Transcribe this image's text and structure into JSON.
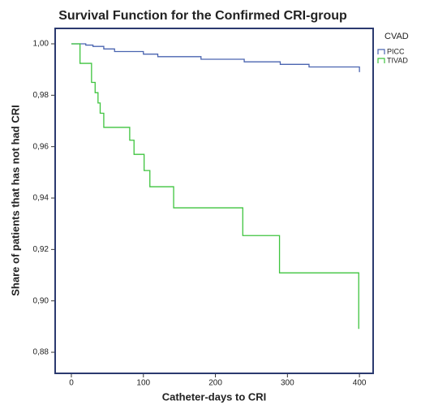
{
  "chart_data": {
    "type": "step",
    "title": "Survival Function for the Confirmed CRI-group",
    "x_label": "Catheter-days to CRI",
    "y_label": "Share of patients that has not had CRI",
    "legend_title": "CVAD",
    "xlim": [
      -22.5,
      419
    ],
    "ylim": [
      0.8718,
      1.006
    ],
    "xticks": [
      0,
      100,
      200,
      300,
      400
    ],
    "yticks": [
      {
        "value": 0.88,
        "label": "0,88"
      },
      {
        "value": 0.9,
        "label": "0,90"
      },
      {
        "value": 0.92,
        "label": "0,92"
      },
      {
        "value": 0.94,
        "label": "0,94"
      },
      {
        "value": 0.96,
        "label": "0,96"
      },
      {
        "value": 0.98,
        "label": "0,98"
      },
      {
        "value": 1.0,
        "label": "1,00"
      }
    ],
    "series": [
      {
        "name": "PICC",
        "color": "#4a64b0",
        "x": [
          0,
          20,
          30,
          45,
          60,
          100,
          120,
          180,
          240,
          290,
          330,
          400
        ],
        "values": [
          1.0,
          0.9995,
          0.999,
          0.998,
          0.997,
          0.996,
          0.995,
          0.994,
          0.993,
          0.992,
          0.991,
          0.989
        ]
      },
      {
        "name": "TIVAD",
        "color": "#3ec43e",
        "x": [
          0,
          12,
          28,
          33,
          37,
          40,
          45,
          81,
          87,
          101,
          109,
          142,
          238,
          289,
          399
        ],
        "values": [
          1.0,
          0.9924,
          0.985,
          0.981,
          0.977,
          0.973,
          0.9675,
          0.9625,
          0.957,
          0.9507,
          0.9444,
          0.9362,
          0.9254,
          0.9109,
          0.8891
        ]
      }
    ]
  }
}
